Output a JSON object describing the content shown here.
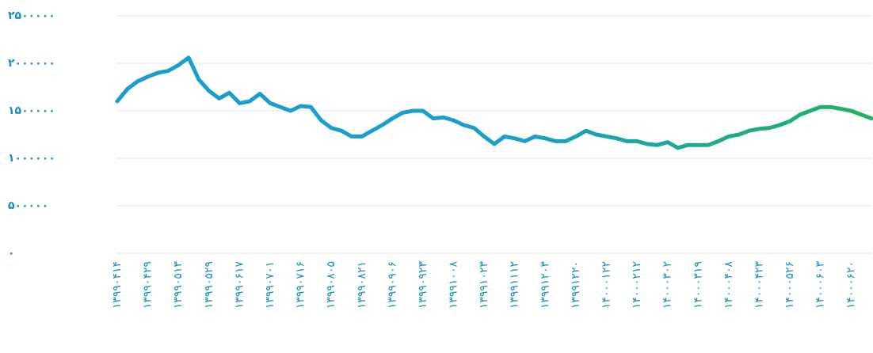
{
  "chart_data": {
    "type": "line",
    "categories": [
      "۱۳۹۹۰۴۱۴",
      null,
      null,
      "۱۳۹۹۰۴۲۹",
      null,
      null,
      "۱۳۹۹۰۵۱۳",
      null,
      null,
      "۱۳۹۹۰۵۲۹",
      null,
      null,
      "۱۳۹۹۰۶۱۷",
      null,
      null,
      "۱۳۹۹۰۷۰۱",
      null,
      null,
      "۱۳۹۹۰۷۱۶",
      null,
      null,
      "۱۳۹۹۰۸۰۵",
      null,
      null,
      "۱۳۹۹۰۸۲۱",
      null,
      null,
      "۱۳۹۹۰۹۰۶",
      null,
      null,
      "۱۳۹۹۰۹۲۳",
      null,
      null,
      "۱۳۹۹۱۰۰۸",
      null,
      null,
      "۱۳۹۹۱۰۲۳",
      null,
      null,
      "۱۳۹۹۱۱۱۲",
      null,
      null,
      "۱۳۹۹۱۲۰۳",
      null,
      null,
      "۱۳۹۹۱۲۲۰",
      null,
      null,
      "۱۴۰۰۰۱۲۲",
      null,
      null,
      "۱۴۰۰۰۲۱۲",
      null,
      null,
      "۱۴۰۰۰۳۰۲",
      null,
      null,
      "۱۴۰۰۰۳۱۹",
      null,
      null,
      "۱۴۰۰۰۴۰۸",
      null,
      null,
      "۱۴۰۰۰۴۲۳",
      null,
      null,
      "۱۴۰۰۰۵۲۶",
      null,
      null,
      "۱۴۰۰۰۶۰۳",
      null,
      null,
      "۱۴۰۰۰۶۲۰",
      null,
      null
    ],
    "series": [
      {
        "color": "#1a9ecb",
        "gradient_end": "#20b25e",
        "values": [
          1600000,
          1730000,
          1810000,
          1860000,
          1900000,
          1920000,
          1980000,
          2060000,
          1830000,
          1710000,
          1630000,
          1690000,
          1580000,
          1600000,
          1680000,
          1580000,
          1540000,
          1500000,
          1550000,
          1540000,
          1400000,
          1320000,
          1290000,
          1230000,
          1230000,
          1290000,
          1350000,
          1420000,
          1480000,
          1500000,
          1500000,
          1420000,
          1430000,
          1400000,
          1350000,
          1320000,
          1230000,
          1150000,
          1230000,
          1210000,
          1180000,
          1230000,
          1210000,
          1180000,
          1180000,
          1230000,
          1290000,
          1250000,
          1230000,
          1210000,
          1180000,
          1180000,
          1150000,
          1140000,
          1170000,
          1110000,
          1140000,
          1140000,
          1140000,
          1180000,
          1230000,
          1250000,
          1290000,
          1310000,
          1320000,
          1350000,
          1390000,
          1460000,
          1500000,
          1540000,
          1540000,
          1520000,
          1500000,
          1460000,
          1420000
        ]
      }
    ],
    "ylim": [
      0,
      2500000
    ],
    "yticks": [
      {
        "value": 0,
        "label": "۰"
      },
      {
        "value": 500000,
        "label": "۵۰۰۰۰۰"
      },
      {
        "value": 1000000,
        "label": "۱۰۰۰۰۰۰"
      },
      {
        "value": 1500000,
        "label": "۱۵۰۰۰۰۰"
      },
      {
        "value": 2000000,
        "label": "۲۰۰۰۰۰۰"
      },
      {
        "value": 2500000,
        "label": "۲۵۰۰۰۰۰"
      }
    ],
    "grid": true
  }
}
